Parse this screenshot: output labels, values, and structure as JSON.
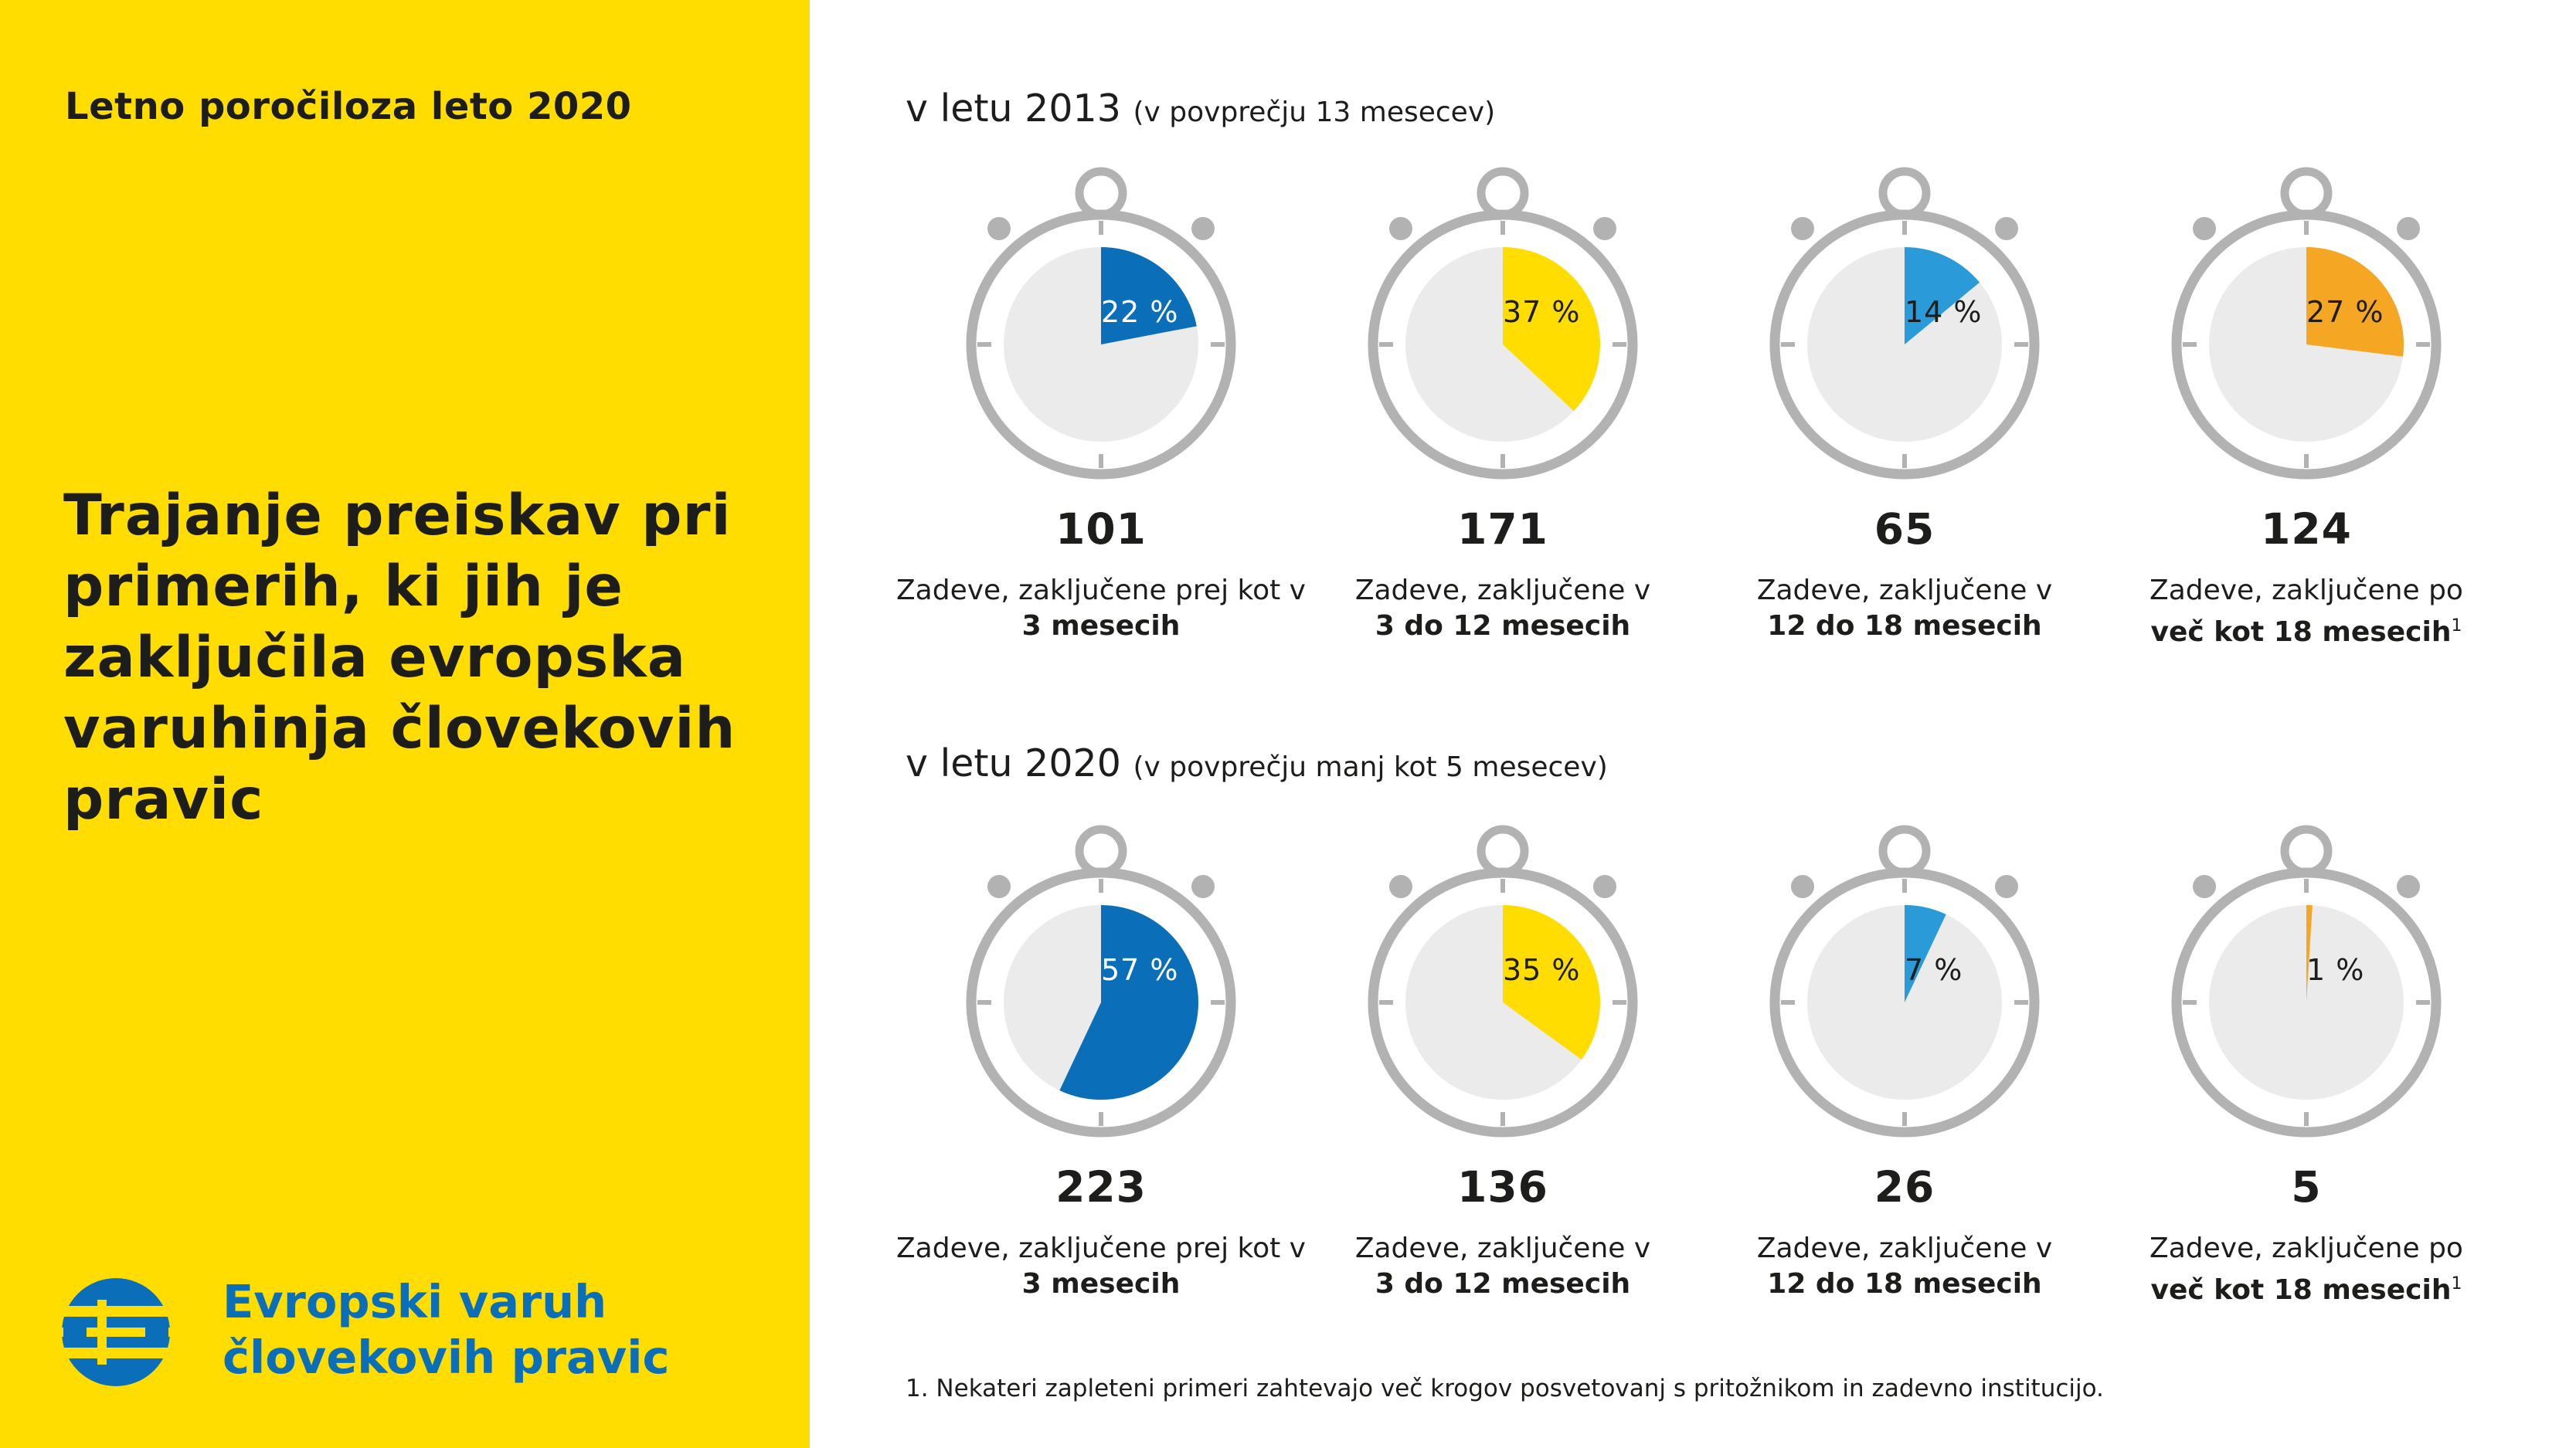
{
  "report_title": "Letno poročiloza leto 2020",
  "heading": "Trajanje preiskav pri primerih, ki jih je zaključila evropska varuhinja človekovih pravic",
  "logo": {
    "line1": "Evropski varuh",
    "line2": "človekovih pravic"
  },
  "sections": [
    {
      "title": "v letu 2013",
      "subtitle": "(v povprečju 13 mesecev)",
      "watches": [
        {
          "percent": 22,
          "percent_label": "22 %",
          "count": "101",
          "desc_line1": "Zadeve, zaključene prej kot v",
          "desc_line2": "3 mesecih",
          "sup": "",
          "color": "#0a6fb8",
          "label_color": "#ffffff"
        },
        {
          "percent": 37,
          "percent_label": "37 %",
          "count": "171",
          "desc_line1": "Zadeve, zaključene v",
          "desc_line2": "3 do 12 mesecih",
          "sup": "",
          "color": "#ffdd00",
          "label_color": "#1d1d1b"
        },
        {
          "percent": 14,
          "percent_label": "14 %",
          "count": "65",
          "desc_line1": "Zadeve, zaključene v",
          "desc_line2": "12 do 18 mesecih",
          "sup": "",
          "color": "#2a9ad8",
          "label_color": "#1d1d1b"
        },
        {
          "percent": 27,
          "percent_label": "27 %",
          "count": "124",
          "desc_line1": "Zadeve, zaključene po",
          "desc_line2": "več kot 18 mesecih",
          "sup": "1",
          "color": "#f5a623",
          "label_color": "#1d1d1b"
        }
      ]
    },
    {
      "title": "v letu 2020",
      "subtitle": "(v povprečju manj kot 5 mesecev)",
      "watches": [
        {
          "percent": 57,
          "percent_label": "57 %",
          "count": "223",
          "desc_line1": "Zadeve, zaključene prej kot v",
          "desc_line2": "3 mesecih",
          "sup": "",
          "color": "#0a6fb8",
          "label_color": "#ffffff"
        },
        {
          "percent": 35,
          "percent_label": "35 %",
          "count": "136",
          "desc_line1": "Zadeve, zaključene v",
          "desc_line2": "3 do 12 mesecih",
          "sup": "",
          "color": "#ffdd00",
          "label_color": "#1d1d1b"
        },
        {
          "percent": 7,
          "percent_label": "7 %",
          "count": "26",
          "desc_line1": "Zadeve, zaključene v",
          "desc_line2": "12 do 18 mesecih",
          "sup": "",
          "color": "#2a9ad8",
          "label_color": "#1d1d1b"
        },
        {
          "percent": 1,
          "percent_label": "1 %",
          "count": "5",
          "desc_line1": "Zadeve, zaključene po",
          "desc_line2": "več kot 18 mesecih",
          "sup": "1",
          "color": "#f5a623",
          "label_color": "#1d1d1b"
        }
      ]
    }
  ],
  "footnote": "1. Nekateri zapleteni primeri zahtevajo več krogov posvetovanj s pritožnikom in zadevno institucijo."
}
